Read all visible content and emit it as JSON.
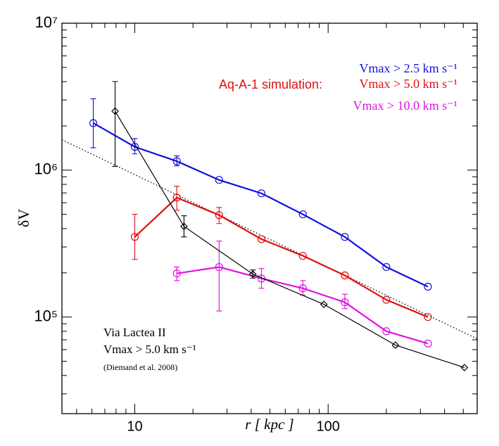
{
  "chart_data": {
    "type": "line",
    "log_x": true,
    "log_y": true,
    "xlabel": "r  [ kpc ]",
    "ylabel": "δV",
    "xlim": [
      4.2,
      590
    ],
    "ylim": [
      22000,
      10000000
    ],
    "xticks": [
      10,
      100
    ],
    "yticks": [
      {
        "value": 100000,
        "label": "10⁵"
      },
      {
        "value": 1000000,
        "label": "10⁶"
      },
      {
        "value": 10000000,
        "label": "10⁷"
      }
    ],
    "legend_group_label": "Aq-A-1 simulation:",
    "annotations": [
      "Vmax > 5.0 km s⁻¹",
      "(Diemand et al. 2008)"
    ],
    "series": [
      {
        "name": "Vmax > 2.5 km s⁻¹",
        "color": "#1010e0",
        "marker": "circle",
        "legend": "upper right",
        "x": [
          6.1,
          10,
          16.5,
          27.3,
          45.2,
          74,
          122,
          200,
          328
        ],
        "values": [
          2090000,
          1440000,
          1150000,
          857000,
          695000,
          500000,
          351000,
          219000,
          161000
        ],
        "error_lower": [
          1420000,
          1290000,
          1070000,
          null,
          null,
          null,
          null,
          null,
          null
        ],
        "error_upper": [
          3060000,
          1640000,
          1250000,
          null,
          null,
          null,
          null,
          null,
          null
        ]
      },
      {
        "name": "Vmax > 5.0 km s⁻¹",
        "color": "#e01010",
        "marker": "circle",
        "legend": "upper right",
        "x": [
          10,
          16.5,
          27.3,
          45.2,
          74,
          122,
          200,
          328
        ],
        "values": [
          351000,
          650000,
          494000,
          339000,
          261000,
          192000,
          131000,
          100000
        ],
        "error_lower": [
          247000,
          533000,
          433000,
          null,
          null,
          null,
          null,
          null
        ],
        "error_upper": [
          500000,
          776000,
          557000,
          null,
          null,
          null,
          null,
          null
        ]
      },
      {
        "name": "Vmax > 10.0 km s⁻¹",
        "color": "#e010e0",
        "marker": "circle",
        "legend": "upper right",
        "x": [
          16.5,
          27.3,
          45.2,
          74,
          122,
          200,
          328
        ],
        "values": [
          198000,
          219000,
          183000,
          157000,
          126000,
          80000,
          66000
        ],
        "error_lower": [
          177000,
          110000,
          157000,
          141000,
          114000,
          null,
          null
        ],
        "error_upper": [
          219000,
          329000,
          214000,
          177000,
          143000,
          null,
          null
        ]
      },
      {
        "name": "Via Lactea II",
        "color": "#000000",
        "marker": "diamond",
        "legend": "lower left",
        "x": [
          7.91,
          17.97,
          40.8,
          95.1,
          223,
          507
        ],
        "values": [
          2520000,
          414000,
          196000,
          122000,
          64400,
          45300
        ],
        "error_lower": [
          1060000,
          351000,
          184000,
          null,
          null,
          null
        ],
        "error_upper": [
          4010000,
          489000,
          209000,
          null,
          null,
          null
        ]
      }
    ],
    "reference_line": {
      "x": [
        4.2,
        590
      ],
      "values": [
        1610000,
        71000
      ],
      "style": "dotted",
      "color": "#000000"
    }
  }
}
